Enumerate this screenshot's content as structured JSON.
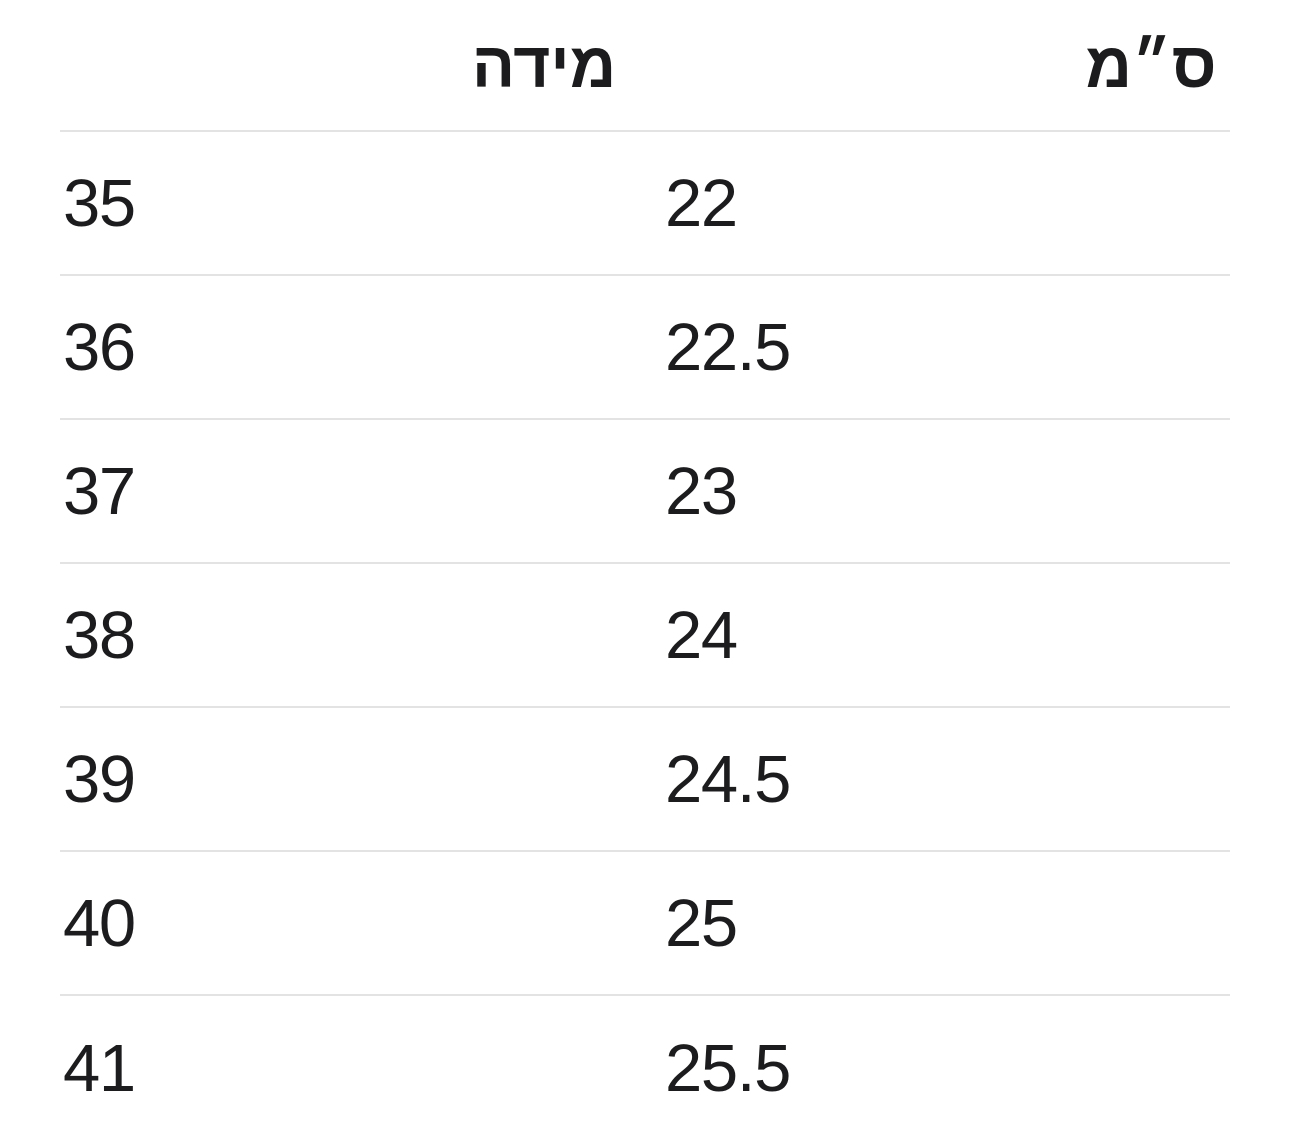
{
  "page": {
    "language": "he",
    "type": "size-chart"
  },
  "colors": {
    "text": "#1c1c1e",
    "divider": "#e3e3e3",
    "background": "#ffffff"
  },
  "table": {
    "headers": [
      {
        "id": "size",
        "label": "מידה"
      },
      {
        "id": "cm",
        "label": "ס״מ"
      }
    ],
    "rows": [
      {
        "size": "35",
        "cm": "22"
      },
      {
        "size": "36",
        "cm": "22.5"
      },
      {
        "size": "37",
        "cm": "23"
      },
      {
        "size": "38",
        "cm": "24"
      },
      {
        "size": "39",
        "cm": "24.5"
      },
      {
        "size": "40",
        "cm": "25"
      },
      {
        "size": "41",
        "cm": "25.5"
      }
    ]
  },
  "chart_data": {
    "type": "table",
    "title": "",
    "columns": [
      "מידה",
      "ס״מ"
    ],
    "rows": [
      [
        "35",
        "22"
      ],
      [
        "36",
        "22.5"
      ],
      [
        "37",
        "23"
      ],
      [
        "38",
        "24"
      ],
      [
        "39",
        "24.5"
      ],
      [
        "40",
        "25"
      ],
      [
        "41",
        "25.5"
      ]
    ]
  }
}
